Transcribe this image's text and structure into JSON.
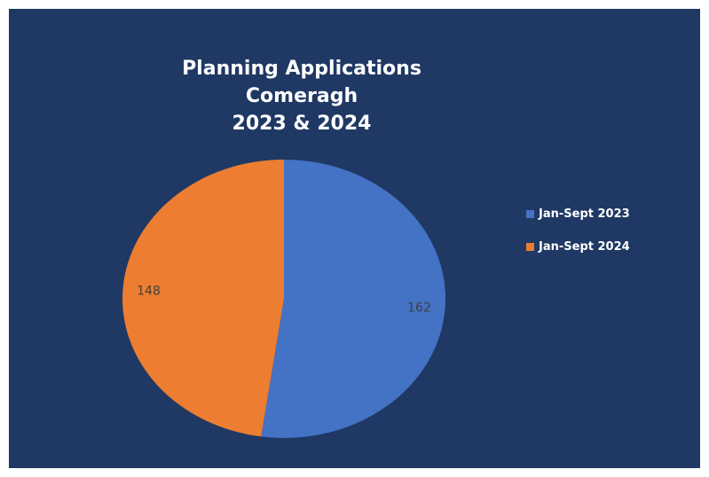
{
  "chart_data": {
    "type": "pie",
    "title_lines": [
      "Planning Applications",
      "Comeragh",
      "2023 & 2024"
    ],
    "categories": [
      "Jan-Sept 2023",
      "Jan-Sept 2024"
    ],
    "values": [
      162,
      148
    ],
    "data_labels": [
      "162",
      "148"
    ],
    "colors": [
      "#4472c4",
      "#ed7d31"
    ],
    "legend_position": "right"
  },
  "colors": {
    "background": "#1f3864",
    "text": "#ffffff",
    "data_label": "#404040"
  }
}
